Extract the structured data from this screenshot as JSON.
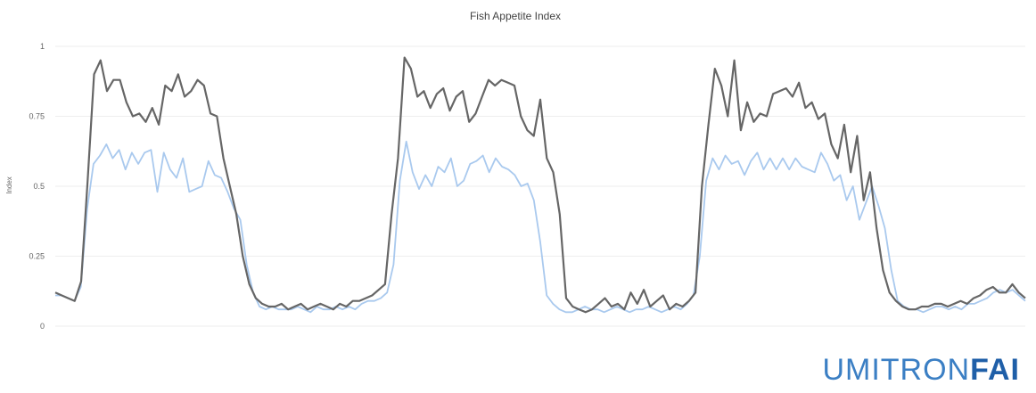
{
  "brand": {
    "light": "UMITRON",
    "bold": "FAI"
  },
  "chart_data": {
    "type": "line",
    "title": "Fish Appetite Index",
    "xlabel": "",
    "ylabel": "Index",
    "ylim": [
      0,
      1
    ],
    "yticks": [
      0,
      0.25,
      0.5,
      0.75,
      1
    ],
    "ytick_labels": [
      "0",
      "0.25",
      "0.5",
      "0.75",
      "1"
    ],
    "grid": true,
    "xlim": [
      0,
      150
    ],
    "colors": {
      "dark": "#666666",
      "light": "#a9c9ee"
    },
    "series": [
      {
        "values": [
          0.11,
          0.11,
          0.1,
          0.09,
          0.14,
          0.42,
          0.58,
          0.61,
          0.65,
          0.6,
          0.63,
          0.56,
          0.62,
          0.58,
          0.62,
          0.63,
          0.48,
          0.62,
          0.56,
          0.53,
          0.6,
          0.48,
          0.49,
          0.5,
          0.59,
          0.54,
          0.53,
          0.48,
          0.42,
          0.38,
          0.22,
          0.12,
          0.07,
          0.06,
          0.07,
          0.06,
          0.06,
          0.06,
          0.07,
          0.06,
          0.05,
          0.07,
          0.06,
          0.06,
          0.07,
          0.06,
          0.07,
          0.06,
          0.08,
          0.09,
          0.09,
          0.1,
          0.12,
          0.22,
          0.52,
          0.66,
          0.55,
          0.49,
          0.54,
          0.5,
          0.57,
          0.55,
          0.6,
          0.5,
          0.52,
          0.58,
          0.59,
          0.61,
          0.55,
          0.6,
          0.57,
          0.56,
          0.54,
          0.5,
          0.51,
          0.45,
          0.3,
          0.11,
          0.08,
          0.06,
          0.05,
          0.05,
          0.06,
          0.07,
          0.06,
          0.06,
          0.05,
          0.06,
          0.07,
          0.06,
          0.05,
          0.06,
          0.06,
          0.07,
          0.06,
          0.05,
          0.06,
          0.07,
          0.06,
          0.08,
          0.11,
          0.25,
          0.52,
          0.6,
          0.56,
          0.61,
          0.58,
          0.59,
          0.54,
          0.59,
          0.62,
          0.56,
          0.6,
          0.56,
          0.6,
          0.56,
          0.6,
          0.57,
          0.56,
          0.55,
          0.62,
          0.58,
          0.52,
          0.54,
          0.45,
          0.5,
          0.38,
          0.44,
          0.5,
          0.43,
          0.35,
          0.2,
          0.09,
          0.07,
          0.06,
          0.06,
          0.05,
          0.06,
          0.07,
          0.07,
          0.06,
          0.07,
          0.06,
          0.08,
          0.08,
          0.09,
          0.1,
          0.12,
          0.13,
          0.12,
          0.13,
          0.11,
          0.09
        ]
      },
      {
        "values": [
          0.12,
          0.11,
          0.1,
          0.09,
          0.16,
          0.52,
          0.9,
          0.95,
          0.84,
          0.88,
          0.88,
          0.8,
          0.75,
          0.76,
          0.73,
          0.78,
          0.72,
          0.86,
          0.84,
          0.9,
          0.82,
          0.84,
          0.88,
          0.86,
          0.76,
          0.75,
          0.6,
          0.5,
          0.4,
          0.25,
          0.15,
          0.1,
          0.08,
          0.07,
          0.07,
          0.08,
          0.06,
          0.07,
          0.08,
          0.06,
          0.07,
          0.08,
          0.07,
          0.06,
          0.08,
          0.07,
          0.09,
          0.09,
          0.1,
          0.11,
          0.13,
          0.15,
          0.4,
          0.6,
          0.96,
          0.92,
          0.82,
          0.84,
          0.78,
          0.83,
          0.85,
          0.77,
          0.82,
          0.84,
          0.73,
          0.76,
          0.82,
          0.88,
          0.86,
          0.88,
          0.87,
          0.86,
          0.75,
          0.7,
          0.68,
          0.81,
          0.6,
          0.55,
          0.4,
          0.1,
          0.07,
          0.06,
          0.05,
          0.06,
          0.08,
          0.1,
          0.07,
          0.08,
          0.06,
          0.12,
          0.08,
          0.13,
          0.07,
          0.09,
          0.11,
          0.06,
          0.08,
          0.07,
          0.09,
          0.12,
          0.5,
          0.72,
          0.92,
          0.86,
          0.75,
          0.95,
          0.7,
          0.8,
          0.73,
          0.76,
          0.75,
          0.83,
          0.84,
          0.85,
          0.82,
          0.87,
          0.78,
          0.8,
          0.74,
          0.76,
          0.65,
          0.6,
          0.72,
          0.55,
          0.68,
          0.45,
          0.55,
          0.35,
          0.2,
          0.12,
          0.09,
          0.07,
          0.06,
          0.06,
          0.07,
          0.07,
          0.08,
          0.08,
          0.07,
          0.08,
          0.09,
          0.08,
          0.1,
          0.11,
          0.13,
          0.14,
          0.12,
          0.12,
          0.15,
          0.12,
          0.1
        ]
      }
    ]
  }
}
